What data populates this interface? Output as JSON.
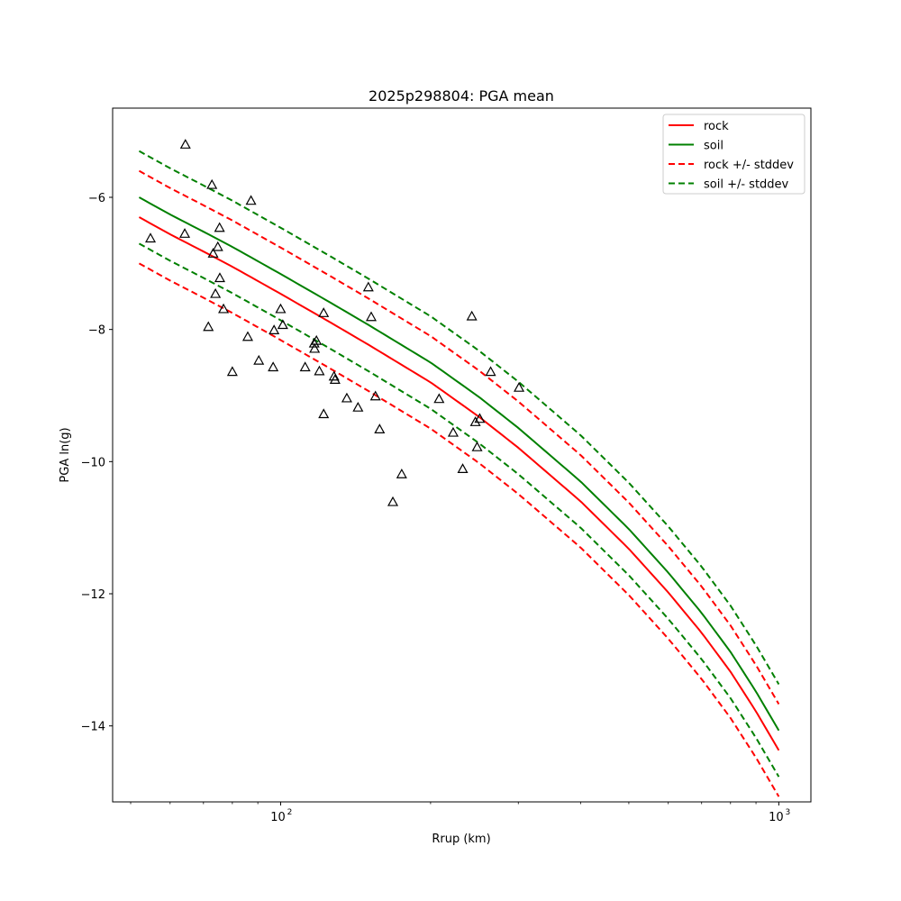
{
  "chart_data": {
    "type": "scatter",
    "title": "2025p298804: PGA mean",
    "xlabel": "Rrup (km)",
    "ylabel": "PGA ln(g)",
    "x_scale": "log",
    "xlim": [
      46,
      1160
    ],
    "ylim": [
      -15.15,
      -4.65
    ],
    "x_ticks": [
      {
        "value": 100,
        "base": "10",
        "exp": "2"
      },
      {
        "value": 1000,
        "base": "10",
        "exp": "3"
      }
    ],
    "y_ticks": [
      {
        "value": -6,
        "label": "−6"
      },
      {
        "value": -8,
        "label": "−8"
      },
      {
        "value": -10,
        "label": "−10"
      },
      {
        "value": -12,
        "label": "−12"
      },
      {
        "value": -14,
        "label": "−14"
      }
    ],
    "grid": false,
    "legend_position": "top-right",
    "series": [
      {
        "name": "rock",
        "style": "solid",
        "color": "#ff0000",
        "x": [
          52,
          60,
          70,
          80,
          100,
          125,
          150,
          200,
          250,
          300,
          400,
          500,
          600,
          700,
          800,
          900,
          1000
        ],
        "y": [
          -6.3,
          -6.56,
          -6.82,
          -7.05,
          -7.46,
          -7.88,
          -8.23,
          -8.8,
          -9.32,
          -9.79,
          -10.6,
          -11.32,
          -11.98,
          -12.59,
          -13.18,
          -13.78,
          -14.37
        ]
      },
      {
        "name": "soil",
        "style": "solid",
        "color": "#008000",
        "x": [
          52,
          60,
          70,
          80,
          100,
          125,
          150,
          200,
          250,
          300,
          400,
          500,
          600,
          700,
          800,
          900,
          1000
        ],
        "y": [
          -6.0,
          -6.26,
          -6.52,
          -6.75,
          -7.16,
          -7.58,
          -7.93,
          -8.5,
          -9.02,
          -9.49,
          -10.3,
          -11.02,
          -11.68,
          -12.29,
          -12.88,
          -13.48,
          -14.07
        ]
      },
      {
        "name": "rock +/- stddev",
        "style": "dashed",
        "color": "#ff0000",
        "x": [
          52,
          60,
          70,
          80,
          100,
          125,
          150,
          200,
          250,
          300,
          400,
          500,
          600,
          700,
          800,
          900,
          1000
        ],
        "y": [
          -5.6,
          -5.86,
          -6.12,
          -6.35,
          -6.76,
          -7.18,
          -7.53,
          -8.1,
          -8.62,
          -9.09,
          -9.9,
          -10.62,
          -11.28,
          -11.89,
          -12.48,
          -13.08,
          -13.67
        ],
        "y2": [
          -7.0,
          -7.26,
          -7.52,
          -7.75,
          -8.16,
          -8.58,
          -8.93,
          -9.5,
          -10.02,
          -10.49,
          -11.3,
          -12.02,
          -12.68,
          -13.29,
          -13.88,
          -14.48,
          -15.07
        ]
      },
      {
        "name": "soil +/- stddev",
        "style": "dashed",
        "color": "#008000",
        "x": [
          52,
          60,
          70,
          80,
          100,
          125,
          150,
          200,
          250,
          300,
          400,
          500,
          600,
          700,
          800,
          900,
          1000
        ],
        "y": [
          -5.3,
          -5.56,
          -5.82,
          -6.05,
          -6.46,
          -6.88,
          -7.23,
          -7.8,
          -8.32,
          -8.79,
          -9.6,
          -10.32,
          -10.98,
          -11.59,
          -12.18,
          -12.78,
          -13.37
        ],
        "y2": [
          -6.7,
          -6.96,
          -7.22,
          -7.45,
          -7.86,
          -8.28,
          -8.63,
          -9.2,
          -9.72,
          -10.19,
          -11.0,
          -11.72,
          -12.38,
          -12.99,
          -13.58,
          -14.18,
          -14.77
        ]
      }
    ],
    "observations": {
      "marker": "triangle",
      "x": [
        54.8,
        64.4,
        64.2,
        72.8,
        73.2,
        74.0,
        74.8,
        75.4,
        75.5,
        71.6,
        76.8,
        80.0,
        85.9,
        87.2,
        90.4,
        96.6,
        97.0,
        100.0,
        101.0,
        112.0,
        116.8,
        117.0,
        118.0,
        119.6,
        122.0,
        122.0,
        128.0,
        128.6,
        135.8,
        143.0,
        150.0,
        152.0,
        155.0,
        158.0,
        168.0,
        175.0,
        208.0,
        222.0,
        232.0,
        242.0,
        246.0,
        248.0,
        251.0,
        264.0,
        301.0
      ],
      "y": [
        -6.62,
        -5.2,
        -6.55,
        -5.81,
        -6.85,
        -7.46,
        -6.75,
        -6.46,
        -7.22,
        -7.96,
        -7.69,
        -8.64,
        -8.11,
        -6.05,
        -8.47,
        -8.57,
        -8.01,
        -7.69,
        -7.93,
        -8.57,
        -8.21,
        -8.29,
        -8.17,
        -8.63,
        -7.75,
        -9.28,
        -8.71,
        -8.76,
        -9.04,
        -9.18,
        -7.36,
        -7.81,
        -9.01,
        -9.51,
        -10.61,
        -10.19,
        -9.05,
        -9.56,
        -10.11,
        -7.8,
        -9.4,
        -9.78,
        -9.35,
        -8.64,
        -8.88
      ]
    }
  }
}
